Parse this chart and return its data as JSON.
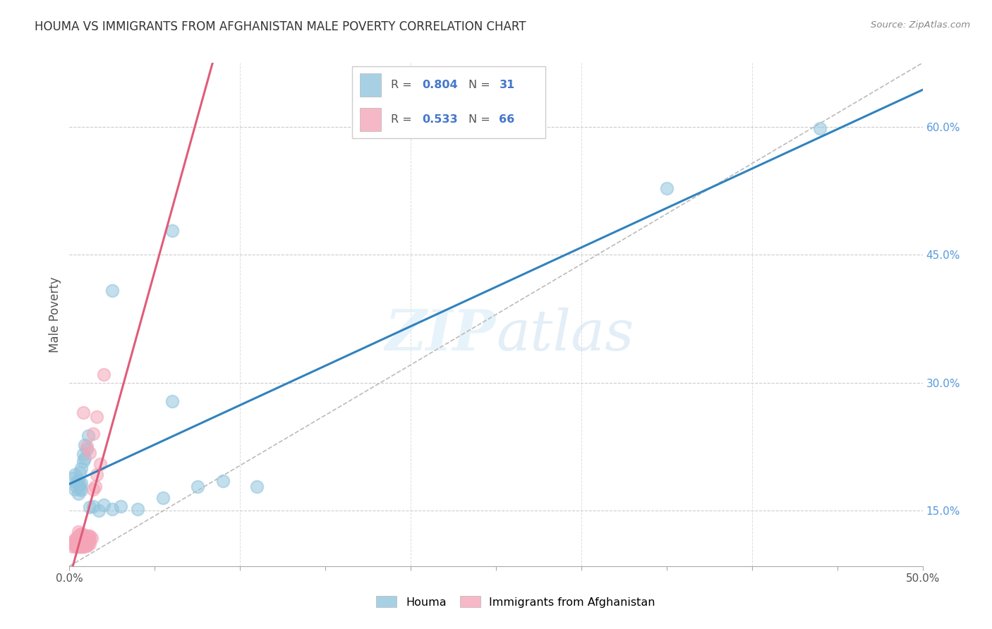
{
  "title": "HOUMA VS IMMIGRANTS FROM AFGHANISTAN MALE POVERTY CORRELATION CHART",
  "source": "Source: ZipAtlas.com",
  "ylabel_label": "Male Poverty",
  "right_ytick_vals": [
    0.15,
    0.3,
    0.45,
    0.6
  ],
  "right_ytick_labels": [
    "15.0%",
    "30.0%",
    "45.0%",
    "60.0%"
  ],
  "xlim": [
    0.0,
    0.5
  ],
  "ylim": [
    0.085,
    0.675
  ],
  "color_houma": "#92c5de",
  "color_afghan": "#f4a6b8",
  "trendline_houma": "#3182bd",
  "trendline_afghan": "#e05c7a",
  "watermark_zip": "ZIP",
  "watermark_atlas": "atlas",
  "background_color": "#ffffff",
  "houma_points": [
    [
      0.002,
      0.188
    ],
    [
      0.003,
      0.175
    ],
    [
      0.003,
      0.192
    ],
    [
      0.004,
      0.183
    ],
    [
      0.004,
      0.178
    ],
    [
      0.005,
      0.186
    ],
    [
      0.005,
      0.17
    ],
    [
      0.006,
      0.18
    ],
    [
      0.006,
      0.195
    ],
    [
      0.006,
      0.176
    ],
    [
      0.007,
      0.2
    ],
    [
      0.007,
      0.182
    ],
    [
      0.007,
      0.174
    ],
    [
      0.008,
      0.208
    ],
    [
      0.008,
      0.216
    ],
    [
      0.009,
      0.211
    ],
    [
      0.009,
      0.227
    ],
    [
      0.01,
      0.222
    ],
    [
      0.011,
      0.238
    ],
    [
      0.012,
      0.154
    ],
    [
      0.014,
      0.155
    ],
    [
      0.017,
      0.15
    ],
    [
      0.02,
      0.157
    ],
    [
      0.025,
      0.152
    ],
    [
      0.03,
      0.155
    ],
    [
      0.04,
      0.152
    ],
    [
      0.055,
      0.165
    ],
    [
      0.075,
      0.178
    ],
    [
      0.09,
      0.185
    ],
    [
      0.11,
      0.178
    ],
    [
      0.06,
      0.278
    ],
    [
      0.025,
      0.408
    ],
    [
      0.06,
      0.478
    ],
    [
      0.35,
      0.528
    ],
    [
      0.44,
      0.598
    ]
  ],
  "afghan_points": [
    [
      0.002,
      0.108
    ],
    [
      0.002,
      0.113
    ],
    [
      0.003,
      0.109
    ],
    [
      0.003,
      0.114
    ],
    [
      0.003,
      0.11
    ],
    [
      0.003,
      0.116
    ],
    [
      0.004,
      0.108
    ],
    [
      0.004,
      0.112
    ],
    [
      0.004,
      0.118
    ],
    [
      0.004,
      0.109
    ],
    [
      0.005,
      0.115
    ],
    [
      0.005,
      0.12
    ],
    [
      0.005,
      0.108
    ],
    [
      0.005,
      0.111
    ],
    [
      0.005,
      0.118
    ],
    [
      0.005,
      0.125
    ],
    [
      0.006,
      0.108
    ],
    [
      0.006,
      0.112
    ],
    [
      0.006,
      0.116
    ],
    [
      0.006,
      0.122
    ],
    [
      0.006,
      0.108
    ],
    [
      0.006,
      0.113
    ],
    [
      0.006,
      0.117
    ],
    [
      0.007,
      0.123
    ],
    [
      0.007,
      0.109
    ],
    [
      0.007,
      0.114
    ],
    [
      0.007,
      0.119
    ],
    [
      0.007,
      0.108
    ],
    [
      0.007,
      0.115
    ],
    [
      0.008,
      0.122
    ],
    [
      0.008,
      0.108
    ],
    [
      0.008,
      0.112
    ],
    [
      0.008,
      0.11
    ],
    [
      0.008,
      0.116
    ],
    [
      0.008,
      0.108
    ],
    [
      0.008,
      0.113
    ],
    [
      0.009,
      0.11
    ],
    [
      0.009,
      0.118
    ],
    [
      0.009,
      0.109
    ],
    [
      0.009,
      0.116
    ],
    [
      0.009,
      0.111
    ],
    [
      0.009,
      0.12
    ],
    [
      0.01,
      0.11
    ],
    [
      0.01,
      0.115
    ],
    [
      0.01,
      0.109
    ],
    [
      0.01,
      0.114
    ],
    [
      0.01,
      0.11
    ],
    [
      0.01,
      0.115
    ],
    [
      0.011,
      0.113
    ],
    [
      0.011,
      0.118
    ],
    [
      0.011,
      0.112
    ],
    [
      0.011,
      0.12
    ],
    [
      0.012,
      0.111
    ],
    [
      0.012,
      0.116
    ],
    [
      0.012,
      0.12
    ],
    [
      0.013,
      0.118
    ],
    [
      0.014,
      0.175
    ],
    [
      0.015,
      0.178
    ],
    [
      0.016,
      0.192
    ],
    [
      0.018,
      0.205
    ],
    [
      0.008,
      0.265
    ],
    [
      0.012,
      0.218
    ],
    [
      0.016,
      0.26
    ],
    [
      0.02,
      0.31
    ],
    [
      0.01,
      0.225
    ],
    [
      0.014,
      0.24
    ]
  ],
  "houma_trendline_x": [
    0.0,
    0.5
  ],
  "afghan_trendline_xmax": 0.115
}
